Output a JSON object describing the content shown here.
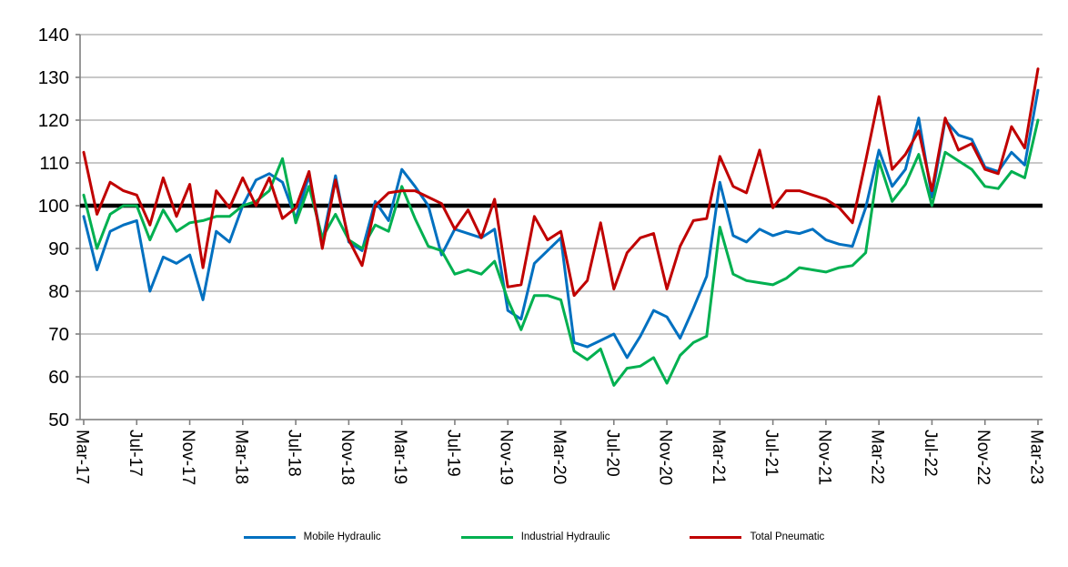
{
  "chart_data": {
    "type": "line",
    "title": "",
    "xlabel": "",
    "ylabel": "",
    "ylim": [
      50,
      140
    ],
    "y_tick_step": 10,
    "reference_line": 100,
    "grid": true,
    "legend_position": "bottom",
    "x_tick_every": 4,
    "categories": [
      "Mar-17",
      "Apr-17",
      "May-17",
      "Jun-17",
      "Jul-17",
      "Aug-17",
      "Sep-17",
      "Oct-17",
      "Nov-17",
      "Dec-17",
      "Jan-18",
      "Feb-18",
      "Mar-18",
      "Apr-18",
      "May-18",
      "Jun-18",
      "Jul-18",
      "Aug-18",
      "Sep-18",
      "Oct-18",
      "Nov-18",
      "Dec-18",
      "Jan-19",
      "Feb-19",
      "Mar-19",
      "Apr-19",
      "May-19",
      "Jun-19",
      "Jul-19",
      "Aug-19",
      "Sep-19",
      "Oct-19",
      "Nov-19",
      "Dec-19",
      "Jan-20",
      "Feb-20",
      "Mar-20",
      "Apr-20",
      "May-20",
      "Jun-20",
      "Jul-20",
      "Aug-20",
      "Sep-20",
      "Oct-20",
      "Nov-20",
      "Dec-20",
      "Jan-21",
      "Feb-21",
      "Mar-21",
      "Apr-21",
      "May-21",
      "Jun-21",
      "Jul-21",
      "Aug-21",
      "Sep-21",
      "Oct-21",
      "Nov-21",
      "Dec-21",
      "Jan-22",
      "Feb-22",
      "Mar-22",
      "Apr-22",
      "May-22",
      "Jun-22",
      "Jul-22",
      "Aug-22",
      "Sep-22",
      "Oct-22",
      "Nov-22",
      "Dec-22",
      "Jan-23",
      "Feb-23",
      "Mar-23"
    ],
    "series": [
      {
        "name": "Mobile Hydraulic",
        "color": "#0070C0",
        "values": [
          97.5,
          85,
          94,
          95.5,
          96.5,
          80,
          88,
          86.5,
          88.5,
          78,
          94,
          91.5,
          100,
          106,
          107.5,
          105.5,
          97,
          107,
          91.5,
          107,
          91.5,
          89.5,
          101,
          96.5,
          108.5,
          104.5,
          100,
          88.5,
          94.5,
          93.5,
          92.5,
          94.5,
          75.5,
          73.5,
          86.5,
          89.5,
          92.5,
          68,
          67,
          68.5,
          70,
          64.5,
          69.5,
          75.5,
          74,
          69,
          76,
          83.5,
          105.5,
          93,
          91.5,
          94.5,
          93,
          94,
          93.5,
          94.5,
          92,
          91,
          90.5,
          99.5,
          113,
          104.5,
          108.5,
          120.5,
          102,
          120,
          116.5,
          115.5,
          109,
          108,
          112.5,
          109.5,
          127
        ]
      },
      {
        "name": "Industrial Hydraulic",
        "color": "#00B050",
        "values": [
          102.5,
          90,
          98,
          100,
          100,
          92,
          99,
          94,
          96,
          96.5,
          97.5,
          97.5,
          100,
          101,
          103.5,
          111,
          96,
          104.5,
          92.5,
          98,
          92,
          90,
          95.5,
          94,
          104.5,
          97,
          90.5,
          89.5,
          84,
          85,
          84,
          87,
          78,
          71,
          79,
          79,
          78,
          66,
          64,
          66.5,
          58,
          62,
          62.5,
          64.5,
          58.5,
          65,
          68,
          69.5,
          95,
          84,
          82.5,
          82,
          81.5,
          83,
          85.5,
          85,
          84.5,
          85.5,
          86,
          89,
          110.5,
          101,
          105,
          112,
          100,
          112.5,
          110.5,
          108.5,
          104.5,
          104,
          108,
          106.5,
          120
        ]
      },
      {
        "name": "Total Pneumatic",
        "color": "#C00000",
        "values": [
          112.5,
          98,
          105.5,
          103.5,
          102.5,
          95.5,
          106.5,
          97.5,
          105,
          85.5,
          103.5,
          99.5,
          106.5,
          100,
          106.5,
          97,
          99.5,
          108,
          90,
          106,
          92,
          86,
          100,
          103,
          103.5,
          103.5,
          102,
          100.5,
          94.5,
          99,
          92.5,
          101.5,
          81,
          81.5,
          97.5,
          92,
          94,
          79,
          82.5,
          96,
          80.5,
          89,
          92.5,
          93.5,
          80.5,
          90.5,
          96.5,
          97,
          111.5,
          104.5,
          103,
          113,
          99.5,
          103.5,
          103.5,
          102.5,
          101.5,
          99.5,
          96,
          110.5,
          125.5,
          108.5,
          112,
          117.5,
          103.5,
          120.5,
          113,
          114.5,
          108.5,
          107.5,
          118.5,
          113.5,
          132
        ]
      }
    ],
    "colors": {
      "gridline": "#A6A6A6",
      "axis": "#7F7F7F",
      "reference_line": "#000000",
      "background": "#FFFFFF",
      "text": "#000000"
    }
  },
  "legend": {
    "items": [
      {
        "label": "Mobile Hydraulic"
      },
      {
        "label": "Industrial Hydraulic"
      },
      {
        "label": "Total Pneumatic"
      }
    ]
  }
}
